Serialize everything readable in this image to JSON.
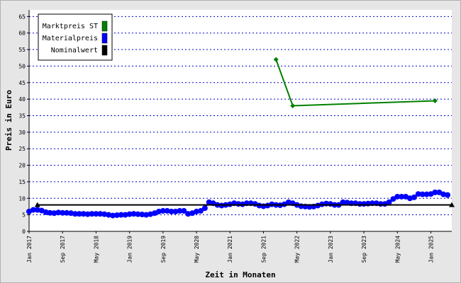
{
  "chart_data": {
    "type": "line",
    "xlabel": "Zeit in Monaten",
    "ylabel": "Preis in Euro",
    "ylim": [
      0,
      67
    ],
    "yticks": [
      0,
      5,
      10,
      15,
      20,
      25,
      30,
      35,
      40,
      45,
      50,
      55,
      60,
      65
    ],
    "x_range": [
      "2017-01",
      "2025-06"
    ],
    "x_ticks": [
      {
        "date": "2017-01",
        "label": "Jan 2017"
      },
      {
        "date": "2017-09",
        "label": "Sep 2017"
      },
      {
        "date": "2018-05",
        "label": "May 2018"
      },
      {
        "date": "2019-01",
        "label": "Jan 2019"
      },
      {
        "date": "2019-09",
        "label": "Sep 2019"
      },
      {
        "date": "2020-05",
        "label": "May 2020"
      },
      {
        "date": "2021-01",
        "label": "Jan 2021"
      },
      {
        "date": "2021-09",
        "label": "Sep 2021"
      },
      {
        "date": "2022-05",
        "label": "May 2022"
      },
      {
        "date": "2023-01",
        "label": "Jan 2023"
      },
      {
        "date": "2023-09",
        "label": "Sep 2023"
      },
      {
        "date": "2024-05",
        "label": "May 2024"
      },
      {
        "date": "2025-01",
        "label": "Jan 2025"
      }
    ],
    "grid": "horizontal dotted",
    "legend_position": "top-left",
    "series": [
      {
        "name": "Marktpreis ST",
        "color": "#008000",
        "marker": "diamond",
        "points": [
          [
            "2021-12",
            52
          ],
          [
            "2022-04",
            38
          ],
          [
            "2025-02",
            39.5
          ]
        ]
      },
      {
        "name": "Materialpreis",
        "color": "#0000ff",
        "marker": "circle",
        "points": [
          [
            "2017-01",
            6
          ],
          [
            "2017-02",
            6.5
          ],
          [
            "2017-03",
            6.5
          ],
          [
            "2017-04",
            6.3
          ],
          [
            "2017-05",
            5.8
          ],
          [
            "2017-06",
            5.6
          ],
          [
            "2017-07",
            5.5
          ],
          [
            "2017-08",
            5.7
          ],
          [
            "2017-09",
            5.6
          ],
          [
            "2017-10",
            5.6
          ],
          [
            "2017-11",
            5.5
          ],
          [
            "2017-12",
            5.3
          ],
          [
            "2018-01",
            5.3
          ],
          [
            "2018-02",
            5.3
          ],
          [
            "2018-03",
            5.2
          ],
          [
            "2018-04",
            5.3
          ],
          [
            "2018-05",
            5.3
          ],
          [
            "2018-06",
            5.3
          ],
          [
            "2018-07",
            5.2
          ],
          [
            "2018-08",
            5.0
          ],
          [
            "2018-09",
            4.8
          ],
          [
            "2018-10",
            4.9
          ],
          [
            "2018-11",
            5.0
          ],
          [
            "2018-12",
            5.0
          ],
          [
            "2019-01",
            5.2
          ],
          [
            "2019-02",
            5.3
          ],
          [
            "2019-03",
            5.2
          ],
          [
            "2019-04",
            5.1
          ],
          [
            "2019-05",
            5.0
          ],
          [
            "2019-06",
            5.2
          ],
          [
            "2019-07",
            5.5
          ],
          [
            "2019-08",
            6.0
          ],
          [
            "2019-09",
            6.2
          ],
          [
            "2019-10",
            6.2
          ],
          [
            "2019-11",
            6.0
          ],
          [
            "2019-12",
            6.0
          ],
          [
            "2020-01",
            6.2
          ],
          [
            "2020-02",
            6.2
          ],
          [
            "2020-03",
            5.3
          ],
          [
            "2020-04",
            5.5
          ],
          [
            "2020-05",
            6.0
          ],
          [
            "2020-06",
            6.2
          ],
          [
            "2020-07",
            7.0
          ],
          [
            "2020-08",
            8.8
          ],
          [
            "2020-09",
            8.5
          ],
          [
            "2020-10",
            8.0
          ],
          [
            "2020-11",
            7.8
          ],
          [
            "2020-12",
            8.0
          ],
          [
            "2021-01",
            8.2
          ],
          [
            "2021-02",
            8.5
          ],
          [
            "2021-03",
            8.3
          ],
          [
            "2021-04",
            8.2
          ],
          [
            "2021-05",
            8.5
          ],
          [
            "2021-06",
            8.5
          ],
          [
            "2021-07",
            8.3
          ],
          [
            "2021-08",
            7.8
          ],
          [
            "2021-09",
            7.6
          ],
          [
            "2021-10",
            7.8
          ],
          [
            "2021-11",
            8.2
          ],
          [
            "2021-12",
            8.0
          ],
          [
            "2022-01",
            7.9
          ],
          [
            "2022-02",
            8.2
          ],
          [
            "2022-03",
            8.8
          ],
          [
            "2022-04",
            8.5
          ],
          [
            "2022-05",
            8.0
          ],
          [
            "2022-06",
            7.6
          ],
          [
            "2022-07",
            7.5
          ],
          [
            "2022-08",
            7.4
          ],
          [
            "2022-09",
            7.5
          ],
          [
            "2022-10",
            7.8
          ],
          [
            "2022-11",
            8.2
          ],
          [
            "2022-12",
            8.4
          ],
          [
            "2023-01",
            8.3
          ],
          [
            "2023-02",
            8.0
          ],
          [
            "2023-03",
            8.0
          ],
          [
            "2023-04",
            8.8
          ],
          [
            "2023-05",
            8.7
          ],
          [
            "2023-06",
            8.5
          ],
          [
            "2023-07",
            8.5
          ],
          [
            "2023-08",
            8.3
          ],
          [
            "2023-09",
            8.3
          ],
          [
            "2023-10",
            8.4
          ],
          [
            "2023-11",
            8.5
          ],
          [
            "2023-12",
            8.5
          ],
          [
            "2024-01",
            8.3
          ],
          [
            "2024-02",
            8.3
          ],
          [
            "2024-03",
            8.8
          ],
          [
            "2024-04",
            9.8
          ],
          [
            "2024-05",
            10.5
          ],
          [
            "2024-06",
            10.5
          ],
          [
            "2024-07",
            10.5
          ],
          [
            "2024-08",
            10.0
          ],
          [
            "2024-09",
            10.3
          ],
          [
            "2024-10",
            11.3
          ],
          [
            "2024-11",
            11.2
          ],
          [
            "2024-12",
            11.2
          ],
          [
            "2025-01",
            11.3
          ],
          [
            "2025-02",
            11.8
          ],
          [
            "2025-03",
            11.8
          ],
          [
            "2025-04",
            11.2
          ],
          [
            "2025-05",
            11.0
          ]
        ]
      },
      {
        "name": "Nominalwert",
        "color": "#000000",
        "marker": "triangle",
        "points": [
          [
            "2017-03",
            8
          ],
          [
            "2025-06",
            8
          ]
        ]
      }
    ]
  }
}
